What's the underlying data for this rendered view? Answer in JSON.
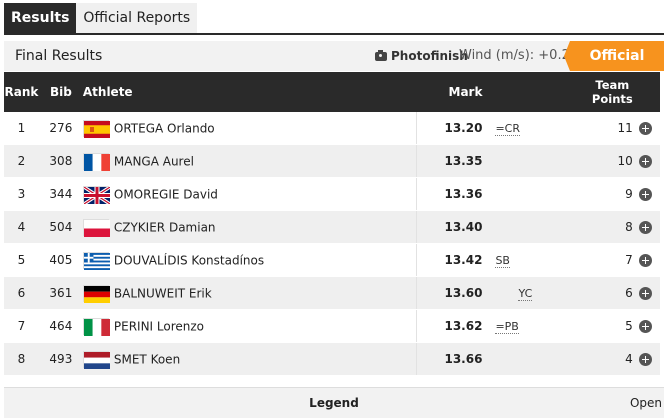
{
  "tabs": [
    {
      "label": "Results",
      "active": true
    },
    {
      "label": "Official Reports",
      "active": false
    }
  ],
  "header": {
    "title": "Final Results",
    "photofinish_label": "Photofinish",
    "photofinish_icon": "camera-icon",
    "wind_label": "Wind (m/s): +0.2",
    "status_badge": "Official",
    "accent_color": "#f7931e"
  },
  "table": {
    "columns": {
      "rank": "Rank",
      "bib": "Bib",
      "athlete": "Athlete",
      "mark": "Mark",
      "team_points_line1": "Team",
      "team_points_line2": "Points"
    },
    "rows": [
      {
        "rank": "1",
        "bib": "276",
        "flag": "ESP",
        "athlete": "ORTEGA Orlando",
        "mark": "13.20",
        "record": "=CR",
        "record_col": "first",
        "points": "11"
      },
      {
        "rank": "2",
        "bib": "308",
        "flag": "FRA",
        "athlete": "MANGA Aurel",
        "mark": "13.35",
        "record": "",
        "record_col": "first",
        "points": "10"
      },
      {
        "rank": "3",
        "bib": "344",
        "flag": "GBR",
        "athlete": "OMOREGIE David",
        "mark": "13.36",
        "record": "",
        "record_col": "first",
        "points": "9"
      },
      {
        "rank": "4",
        "bib": "504",
        "flag": "POL",
        "athlete": "CZYKIER Damian",
        "mark": "13.40",
        "record": "",
        "record_col": "first",
        "points": "8"
      },
      {
        "rank": "5",
        "bib": "405",
        "flag": "GRE",
        "athlete": "DOUVALÍDIS Konstadínos",
        "mark": "13.42",
        "record": "SB",
        "record_col": "first",
        "points": "7"
      },
      {
        "rank": "6",
        "bib": "361",
        "flag": "GER",
        "athlete": "BALNUWEIT Erik",
        "mark": "13.60",
        "record": "YC",
        "record_col": "second",
        "points": "6"
      },
      {
        "rank": "7",
        "bib": "464",
        "flag": "ITA",
        "athlete": "PERINI Lorenzo",
        "mark": "13.62",
        "record": "=PB",
        "record_col": "first",
        "points": "5"
      },
      {
        "rank": "8",
        "bib": "493",
        "flag": "NED",
        "athlete": "SMET Koen",
        "mark": "13.66",
        "record": "",
        "record_col": "first",
        "points": "4"
      }
    ]
  },
  "legend": {
    "title": "Legend",
    "toggle_label": "Open"
  }
}
